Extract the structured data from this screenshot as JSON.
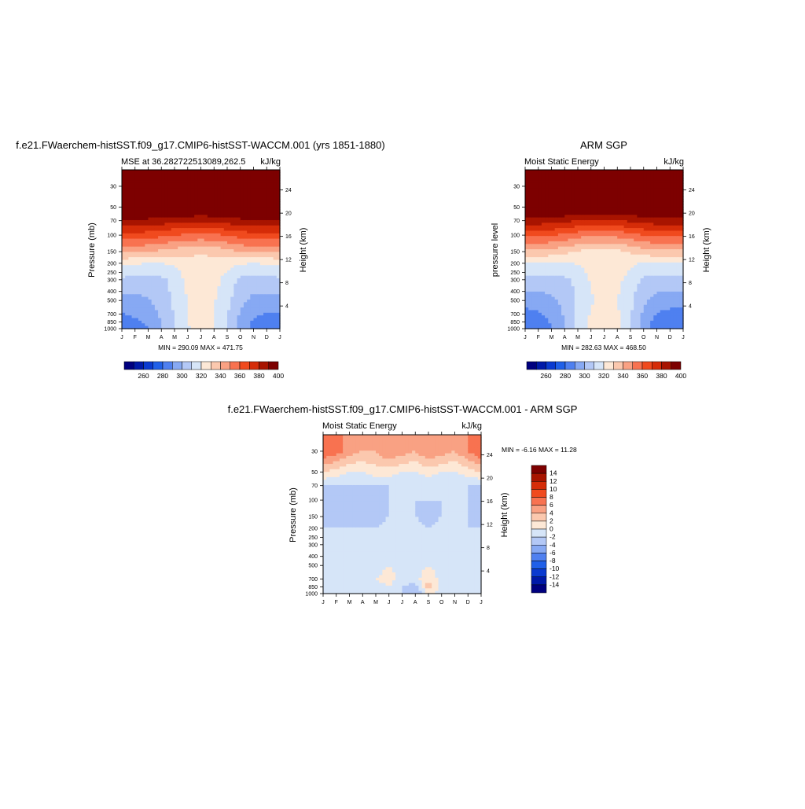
{
  "panels": [
    {
      "id": "model",
      "title": "f.e21.FWaerchem-histSST.f09_g17.CMIP6-histSST-WACCM.001 (yrs 1851-1880)",
      "left_label": "MSE at 36.282722513089,262.5",
      "right_label": "kJ/kg",
      "ylabel": "Pressure (mb)",
      "ylabel_right": "Height (km)",
      "minmax": "MIN = 290.09 MAX = 471.75",
      "xticks": [
        "J",
        "F",
        "M",
        "A",
        "M",
        "J",
        "J",
        "A",
        "S",
        "O",
        "N",
        "D",
        "J"
      ],
      "pressure_ticks": [
        "30",
        "50",
        "70",
        "100",
        "150",
        "200",
        "250",
        "300",
        "400",
        "500",
        "700",
        "850",
        "1000"
      ],
      "height_ticks": [
        "24",
        "20",
        "16",
        "12",
        "8",
        "4"
      ]
    },
    {
      "id": "obs",
      "title": "ARM SGP",
      "left_label": "Moist Static Energy",
      "right_label": "kJ/kg",
      "ylabel": "pressure level",
      "ylabel_right": "Height (km)",
      "minmax": "MIN = 282.63 MAX = 468.50",
      "xticks": [
        "J",
        "F",
        "M",
        "A",
        "M",
        "J",
        "J",
        "A",
        "S",
        "O",
        "N",
        "D",
        "J"
      ],
      "pressure_ticks": [
        "30",
        "50",
        "70",
        "100",
        "150",
        "200",
        "250",
        "300",
        "400",
        "500",
        "700",
        "850",
        "1000"
      ],
      "height_ticks": [
        "24",
        "20",
        "16",
        "12",
        "8",
        "4"
      ]
    },
    {
      "id": "diff",
      "title": "f.e21.FWaerchem-histSST.f09_g17.CMIP6-histSST-WACCM.001 - ARM SGP",
      "left_label": "Moist Static Energy",
      "right_label": "kJ/kg",
      "ylabel": "Pressure (mb)",
      "ylabel_right": "Height (km)",
      "minmax": "MIN =  -6.16 MAX =  11.28",
      "xticks": [
        "J",
        "F",
        "M",
        "A",
        "M",
        "J",
        "J",
        "A",
        "S",
        "O",
        "N",
        "D",
        "J"
      ],
      "pressure_ticks": [
        "30",
        "50",
        "70",
        "100",
        "150",
        "200",
        "250",
        "300",
        "400",
        "500",
        "700",
        "850",
        "1000"
      ],
      "height_ticks": [
        "24",
        "20",
        "16",
        "12",
        "8",
        "4"
      ]
    }
  ],
  "colorbars": {
    "horizontal_labels": [
      "260",
      "280",
      "300",
      "320",
      "340",
      "360",
      "380",
      "400"
    ],
    "vertical_labels": [
      "14",
      "12",
      "10",
      "8",
      "6",
      "4",
      "2",
      "0",
      "-2",
      "-4",
      "-6",
      "-8",
      "-10",
      "-12",
      "-14"
    ],
    "palette": [
      "#00007f",
      "#0019a8",
      "#0a3ad0",
      "#2060e8",
      "#4f80f0",
      "#87a9f3",
      "#b3c8f6",
      "#d6e5f8",
      "#fde8d6",
      "#fbc8ae",
      "#f9a183",
      "#f87250",
      "#f04a1e",
      "#d52c08",
      "#a81400",
      "#7d0000"
    ]
  },
  "chart_data": [
    {
      "type": "heatmap",
      "panel": "model",
      "title": "f.e21.FWaerchem-histSST.f09_g17.CMIP6-histSST-WACCM.001 (yrs 1851-1880)",
      "subtitle_left": "MSE at 36.282722513089,262.5",
      "units": "kJ/kg",
      "x": [
        "J",
        "F",
        "M",
        "A",
        "M",
        "J",
        "J",
        "A",
        "S",
        "O",
        "N",
        "D",
        "J"
      ],
      "ylabel": "Pressure (mb)",
      "y_pressure_levels": [
        30,
        50,
        70,
        100,
        150,
        200,
        250,
        300,
        400,
        500,
        700,
        850,
        1000
      ],
      "min": 290.09,
      "max": 471.75,
      "contour_levels": [
        260,
        270,
        280,
        290,
        300,
        310,
        320,
        330,
        340,
        350,
        360,
        370,
        380,
        390,
        400
      ],
      "approx_values_by_month_at_levels": {
        "30": [
          450,
          450,
          450,
          450,
          450,
          450,
          450,
          450,
          450,
          450,
          450,
          450,
          450
        ],
        "70": [
          398,
          398,
          397,
          396,
          394,
          393,
          392,
          393,
          395,
          397,
          398,
          398,
          398
        ],
        "100": [
          376,
          376,
          375,
          373,
          370,
          368,
          367,
          368,
          371,
          374,
          376,
          376,
          376
        ],
        "150": [
          352,
          352,
          350,
          348,
          345,
          343,
          342,
          343,
          346,
          350,
          352,
          352,
          352
        ],
        "200": [
          332,
          331,
          330,
          330,
          332,
          335,
          336,
          335,
          333,
          331,
          330,
          331,
          332
        ],
        "300": [
          318,
          317,
          316,
          318,
          323,
          333,
          336,
          334,
          326,
          318,
          316,
          317,
          318
        ],
        "500": [
          306,
          307,
          309,
          314,
          322,
          330,
          334,
          331,
          323,
          313,
          307,
          306,
          306
        ],
        "850": [
          296,
          298,
          302,
          310,
          320,
          330,
          334,
          331,
          320,
          306,
          298,
          296,
          296
        ],
        "1000": [
          294,
          296,
          300,
          309,
          320,
          329,
          333,
          330,
          319,
          305,
          297,
          294,
          294
        ]
      }
    },
    {
      "type": "heatmap",
      "panel": "obs",
      "title": "ARM SGP",
      "subtitle_left": "Moist Static Energy",
      "units": "kJ/kg",
      "x": [
        "J",
        "F",
        "M",
        "A",
        "M",
        "J",
        "J",
        "A",
        "S",
        "O",
        "N",
        "D",
        "J"
      ],
      "ylabel": "pressure level",
      "y_pressure_levels": [
        30,
        50,
        70,
        100,
        150,
        200,
        250,
        300,
        400,
        500,
        700,
        850,
        1000
      ],
      "min": 282.63,
      "max": 468.5,
      "contour_levels": [
        260,
        270,
        280,
        290,
        300,
        310,
        320,
        330,
        340,
        350,
        360,
        370,
        380,
        390,
        400
      ],
      "approx_values_by_month_at_levels": {
        "30": [
          445,
          445,
          445,
          445,
          445,
          445,
          445,
          445,
          445,
          445,
          445,
          445,
          445
        ],
        "70": [
          396,
          396,
          395,
          393,
          390,
          389,
          389,
          390,
          392,
          395,
          396,
          396,
          396
        ],
        "100": [
          372,
          372,
          371,
          368,
          364,
          362,
          362,
          363,
          366,
          370,
          372,
          372,
          372
        ],
        "150": [
          348,
          348,
          346,
          343,
          339,
          337,
          337,
          338,
          341,
          345,
          348,
          348,
          348
        ],
        "200": [
          330,
          329,
          328,
          328,
          331,
          334,
          336,
          335,
          332,
          329,
          328,
          329,
          330
        ],
        "300": [
          318,
          317,
          316,
          318,
          323,
          331,
          335,
          333,
          326,
          318,
          316,
          317,
          318
        ],
        "500": [
          304,
          305,
          308,
          313,
          321,
          329,
          333,
          330,
          322,
          312,
          306,
          304,
          304
        ],
        "850": [
          292,
          295,
          301,
          310,
          322,
          332,
          337,
          333,
          321,
          305,
          296,
          293,
          292
        ],
        "1000": [
          290,
          293,
          299,
          309,
          322,
          333,
          339,
          334,
          320,
          304,
          295,
          291,
          290
        ]
      }
    },
    {
      "type": "heatmap",
      "panel": "diff",
      "title": "f.e21.FWaerchem-histSST.f09_g17.CMIP6-histSST-WACCM.001 - ARM SGP",
      "subtitle_left": "Moist Static Energy",
      "units": "kJ/kg",
      "x": [
        "J",
        "F",
        "M",
        "A",
        "M",
        "J",
        "J",
        "A",
        "S",
        "O",
        "N",
        "D",
        "J"
      ],
      "ylabel": "Pressure (mb)",
      "y_pressure_levels": [
        30,
        50,
        70,
        100,
        150,
        200,
        250,
        300,
        400,
        500,
        700,
        850,
        1000
      ],
      "min": -6.16,
      "max": 11.28,
      "contour_levels": [
        -14,
        -12,
        -10,
        -8,
        -6,
        -4,
        -2,
        0,
        2,
        4,
        6,
        8,
        10,
        12,
        14
      ],
      "approx_values_by_month_at_levels": {
        "30": [
          8,
          7,
          5,
          4,
          4,
          6,
          5,
          4,
          6,
          5,
          4,
          6,
          8
        ],
        "50": [
          2,
          1,
          0,
          0,
          1,
          1,
          0,
          0,
          1,
          0,
          0,
          1,
          2
        ],
        "70": [
          -2,
          -2,
          -2,
          -2,
          -2,
          -2,
          -2,
          -2,
          -2,
          -2,
          -2,
          -2,
          -2
        ],
        "100": [
          -3,
          -3,
          -2,
          -3,
          -4,
          -2,
          -2,
          -2,
          -2,
          -2,
          -2,
          -2,
          -3
        ],
        "150": [
          -3,
          -3,
          -3,
          -3,
          -3,
          -2,
          -2,
          -2,
          -3,
          -2,
          -2,
          -2,
          -3
        ],
        "200": [
          -2,
          -2,
          -2,
          -2,
          -2,
          -1,
          -1,
          -1,
          -2,
          -1,
          -2,
          -2,
          -2
        ],
        "300": [
          -2,
          -2,
          -2,
          -2,
          -1,
          -1,
          -1,
          -1,
          -1,
          -1,
          -2,
          -2,
          -2
        ],
        "500": [
          -2,
          -2,
          -2,
          -1,
          -1,
          0,
          -1,
          -1,
          0,
          -1,
          -1,
          -2,
          -2
        ],
        "700": [
          -2,
          -2,
          -1,
          -1,
          0,
          1,
          -1,
          -1,
          2,
          -1,
          -1,
          -2,
          -2
        ],
        "850": [
          -1,
          -1,
          -1,
          -1,
          -1,
          0,
          -2,
          -3,
          3,
          -1,
          -1,
          -1,
          -1
        ],
        "1000": [
          -1,
          -1,
          -1,
          -1,
          -1,
          -1,
          -2,
          -4,
          0,
          -1,
          -1,
          -1,
          -1
        ]
      }
    }
  ]
}
